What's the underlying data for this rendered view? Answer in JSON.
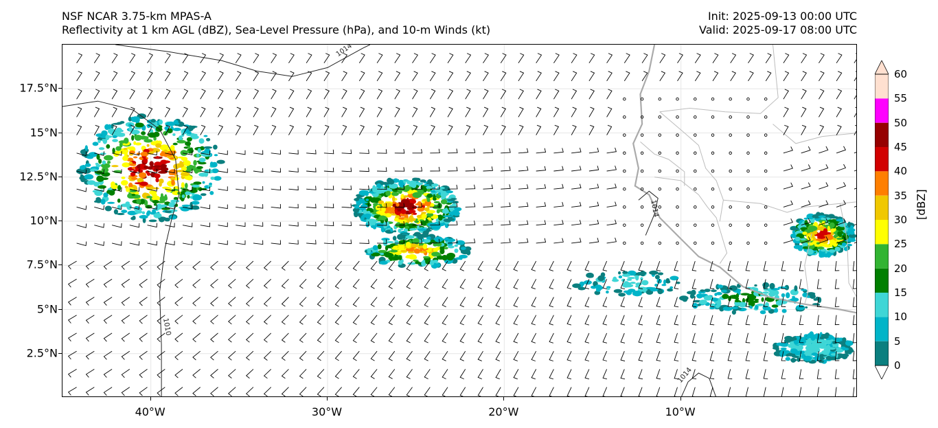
{
  "title": {
    "line1": "NSF NCAR 3.75-km MPAS-A",
    "line2": "Reflectivity at 1 km AGL (dBZ), Sea-Level Pressure (hPa), and 10-m Winds (kt)",
    "init": "Init: 2025-09-13 00:00 UTC",
    "valid": "Valid: 2025-09-17 08:00 UTC"
  },
  "map": {
    "lon_range": [
      -45,
      0
    ],
    "lat_range": [
      0,
      20
    ],
    "lat_ticks": [
      {
        "value": 2.5,
        "label": "2.5°N"
      },
      {
        "value": 5,
        "label": "5°N"
      },
      {
        "value": 7.5,
        "label": "7.5°N"
      },
      {
        "value": 10,
        "label": "10°N"
      },
      {
        "value": 12.5,
        "label": "12.5°N"
      },
      {
        "value": 15,
        "label": "15°N"
      },
      {
        "value": 17.5,
        "label": "17.5°N"
      }
    ],
    "lon_ticks": [
      {
        "value": -40,
        "label": "40°W"
      },
      {
        "value": -30,
        "label": "30°W"
      },
      {
        "value": -20,
        "label": "20°W"
      },
      {
        "value": -10,
        "label": "10°W"
      }
    ],
    "isobar_labels": [
      "1014",
      "1014",
      "1010",
      "1014"
    ]
  },
  "colorbar": {
    "title": "[dBZ]",
    "levels": [
      "0",
      "5",
      "10",
      "15",
      "20",
      "25",
      "30",
      "35",
      "40",
      "45",
      "50",
      "55",
      "60"
    ],
    "colors": [
      "#ffffff",
      "#0b7f7f",
      "#00b4c8",
      "#3fd6d6",
      "#007f00",
      "#32b432",
      "#ffff00",
      "#f0c800",
      "#ff7f00",
      "#d20000",
      "#960000",
      "#ff00ff",
      "#ffe0d0"
    ]
  }
}
